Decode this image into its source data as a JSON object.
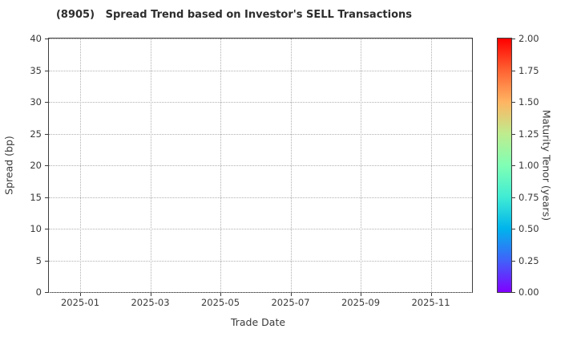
{
  "chart_data": {
    "type": "scatter",
    "title": "(8905)   Spread Trend based on Investor's SELL Transactions",
    "xlabel": "Trade Date",
    "ylabel": "Spread (bp)",
    "x_tick_labels": [
      "2025-01",
      "2025-03",
      "2025-05",
      "2025-07",
      "2025-09",
      "2025-11"
    ],
    "y_ticks": [
      0,
      5,
      10,
      15,
      20,
      25,
      30,
      35,
      40
    ],
    "ylim": [
      0,
      40
    ],
    "grid": true,
    "grid_style": "dotted",
    "series": [],
    "legend": null,
    "colorbar": {
      "label": "Maturity Tenor (years)",
      "range": [
        0.0,
        2.0
      ],
      "tick_labels": [
        "0.00",
        "0.25",
        "0.50",
        "0.75",
        "1.00",
        "1.25",
        "1.50",
        "1.75",
        "2.00"
      ],
      "colormap": "rainbow",
      "gradient": [
        {
          "pos": 0.0,
          "color": "#8000ff"
        },
        {
          "pos": 0.125,
          "color": "#4062fa"
        },
        {
          "pos": 0.25,
          "color": "#00b4ec"
        },
        {
          "pos": 0.375,
          "color": "#40ecd4"
        },
        {
          "pos": 0.5,
          "color": "#80ffb4"
        },
        {
          "pos": 0.625,
          "color": "#bfec8e"
        },
        {
          "pos": 0.75,
          "color": "#ffb462"
        },
        {
          "pos": 0.875,
          "color": "#ff6232"
        },
        {
          "pos": 1.0,
          "color": "#ff0000"
        }
      ]
    }
  },
  "colors": {
    "title": "#2d2d2d",
    "tick_label": "#3a3a3a",
    "axis_line": "#3c3c3c",
    "grid_line": "#b0b0b0",
    "background": "#ffffff"
  }
}
